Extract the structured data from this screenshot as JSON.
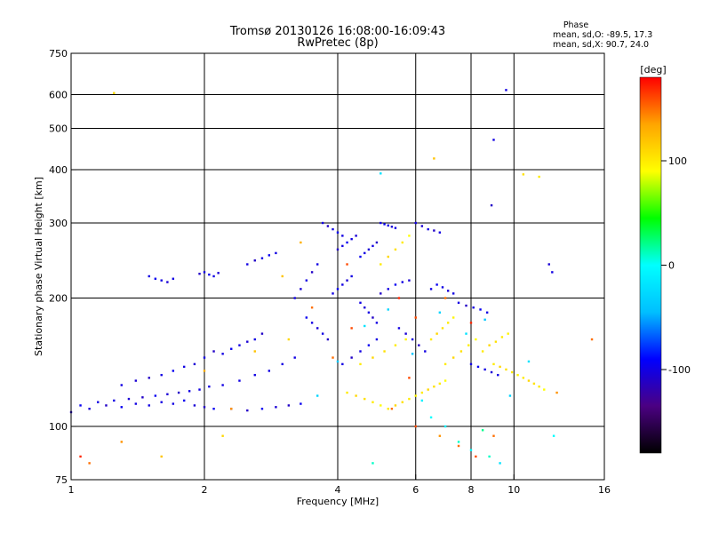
{
  "chart_data": {
    "type": "scatter",
    "title": "Tromsø 20130126 16:08:00-16:09:43",
    "subtitle": "RwPretec (8p)",
    "xlabel": "Frequency [MHz]",
    "ylabel": "Stationary phase Virtual Height [km]",
    "x_scale": "log2",
    "y_scale": "log",
    "xlim": [
      1,
      16
    ],
    "ylim": [
      75,
      750
    ],
    "x_ticks": [
      1,
      2,
      4,
      6,
      8,
      10,
      16
    ],
    "y_ticks": [
      75,
      100,
      200,
      300,
      400,
      500,
      600,
      750
    ],
    "grid": true,
    "phase_box": {
      "title": "Phase",
      "line_o": "mean, sd,O: -89.5, 17.3",
      "line_x": "mean, sd,X:  90.7, 24.0"
    },
    "colorbar": {
      "label": "[deg]",
      "range": [
        -180,
        180
      ],
      "ticks": [
        100,
        0,
        -100
      ],
      "colors": [
        "#000000",
        "#4b0082",
        "#0000ff",
        "#00bfff",
        "#00ffff",
        "#00ff00",
        "#ffff00",
        "#ffa500",
        "#ff0000"
      ]
    },
    "series": [
      {
        "points": [
          [
            1.0,
            108,
            -110
          ],
          [
            1.05,
            112,
            -95
          ],
          [
            1.1,
            110,
            -105
          ],
          [
            1.15,
            114,
            -100
          ],
          [
            1.2,
            112,
            -110
          ],
          [
            1.25,
            115,
            -100
          ],
          [
            1.3,
            111,
            -95
          ],
          [
            1.35,
            116,
            -105
          ],
          [
            1.4,
            113,
            -100
          ],
          [
            1.45,
            117,
            -110
          ],
          [
            1.5,
            112,
            -100
          ],
          [
            1.55,
            118,
            -95
          ],
          [
            1.6,
            114,
            -100
          ],
          [
            1.65,
            119,
            -105
          ],
          [
            1.7,
            113,
            -100
          ],
          [
            1.75,
            120,
            -110
          ],
          [
            1.8,
            115,
            -95
          ],
          [
            1.85,
            121,
            -100
          ],
          [
            1.9,
            112,
            -105
          ],
          [
            1.95,
            122,
            -100
          ],
          [
            2.0,
            111,
            -110
          ],
          [
            2.05,
            124,
            -100
          ],
          [
            2.1,
            110,
            -95
          ],
          [
            2.2,
            125,
            -100
          ],
          [
            2.3,
            110,
            -105
          ],
          [
            2.4,
            128,
            -100
          ],
          [
            2.5,
            109,
            -110
          ],
          [
            2.6,
            132,
            -100
          ],
          [
            2.7,
            110,
            -95
          ],
          [
            2.8,
            135,
            -100
          ],
          [
            2.9,
            111,
            -105
          ],
          [
            3.0,
            140,
            -100
          ],
          [
            3.1,
            112,
            -110
          ],
          [
            3.2,
            145,
            -100
          ],
          [
            3.3,
            113,
            -95
          ],
          [
            1.3,
            125,
            -100
          ],
          [
            1.4,
            128,
            -105
          ],
          [
            1.5,
            130,
            -110
          ],
          [
            1.6,
            132,
            -100
          ],
          [
            1.7,
            135,
            -95
          ],
          [
            1.8,
            138,
            -100
          ],
          [
            1.9,
            140,
            -105
          ],
          [
            2.0,
            145,
            -100
          ],
          [
            2.1,
            150,
            -110
          ],
          [
            2.2,
            148,
            -100
          ],
          [
            2.3,
            152,
            -95
          ],
          [
            2.4,
            155,
            -100
          ],
          [
            2.5,
            158,
            -105
          ],
          [
            2.6,
            160,
            -100
          ],
          [
            2.7,
            165,
            -110
          ],
          [
            1.5,
            225,
            -100
          ],
          [
            1.55,
            222,
            -95
          ],
          [
            1.6,
            220,
            -100
          ],
          [
            1.65,
            218,
            -105
          ],
          [
            1.7,
            222,
            -100
          ],
          [
            1.95,
            228,
            -110
          ],
          [
            2.0,
            230,
            -100
          ],
          [
            2.05,
            227,
            -95
          ],
          [
            2.1,
            225,
            -100
          ],
          [
            2.15,
            229,
            -105
          ],
          [
            2.5,
            240,
            -100
          ],
          [
            2.6,
            245,
            -110
          ],
          [
            2.7,
            248,
            -100
          ],
          [
            2.8,
            252,
            -95
          ],
          [
            2.9,
            255,
            -100
          ],
          [
            3.2,
            200,
            -100
          ],
          [
            3.3,
            210,
            -105
          ],
          [
            3.4,
            220,
            -100
          ],
          [
            3.5,
            230,
            -110
          ],
          [
            3.6,
            240,
            -100
          ],
          [
            3.4,
            180,
            -95
          ],
          [
            3.5,
            175,
            -100
          ],
          [
            3.6,
            170,
            -105
          ],
          [
            3.7,
            165,
            -100
          ],
          [
            3.8,
            160,
            -110
          ],
          [
            3.9,
            205,
            -100
          ],
          [
            4.0,
            210,
            -95
          ],
          [
            4.1,
            215,
            -100
          ],
          [
            4.2,
            220,
            -105
          ],
          [
            4.3,
            225,
            -100
          ],
          [
            4.0,
            260,
            -110
          ],
          [
            4.1,
            265,
            -100
          ],
          [
            4.2,
            270,
            -95
          ],
          [
            4.3,
            275,
            -100
          ],
          [
            4.4,
            280,
            -105
          ],
          [
            3.7,
            300,
            -100
          ],
          [
            3.8,
            295,
            -110
          ],
          [
            3.9,
            290,
            -100
          ],
          [
            4.0,
            285,
            -95
          ],
          [
            4.1,
            280,
            -100
          ],
          [
            4.5,
            195,
            -100
          ],
          [
            4.6,
            190,
            -105
          ],
          [
            4.7,
            185,
            -100
          ],
          [
            4.8,
            180,
            -110
          ],
          [
            4.9,
            175,
            -100
          ],
          [
            4.5,
            250,
            -95
          ],
          [
            4.6,
            255,
            -100
          ],
          [
            4.7,
            260,
            -105
          ],
          [
            4.8,
            265,
            -100
          ],
          [
            4.9,
            270,
            -110
          ],
          [
            5.0,
            300,
            -100
          ],
          [
            5.1,
            298,
            -95
          ],
          [
            5.2,
            296,
            -100
          ],
          [
            5.3,
            294,
            -105
          ],
          [
            5.4,
            292,
            -100
          ],
          [
            5.0,
            205,
            -110
          ],
          [
            5.2,
            210,
            -100
          ],
          [
            5.4,
            215,
            -95
          ],
          [
            5.6,
            218,
            -100
          ],
          [
            5.8,
            220,
            -105
          ],
          [
            4.1,
            140,
            -100
          ],
          [
            4.3,
            145,
            -110
          ],
          [
            4.5,
            150,
            -100
          ],
          [
            4.7,
            155,
            -95
          ],
          [
            4.9,
            160,
            -100
          ],
          [
            5.5,
            170,
            -100
          ],
          [
            5.7,
            165,
            -105
          ],
          [
            5.9,
            160,
            -100
          ],
          [
            6.1,
            155,
            -110
          ],
          [
            6.3,
            150,
            -100
          ],
          [
            6.5,
            210,
            -100
          ],
          [
            6.7,
            215,
            -95
          ],
          [
            6.9,
            212,
            -100
          ],
          [
            7.1,
            208,
            -105
          ],
          [
            7.3,
            205,
            -100
          ],
          [
            7.5,
            195,
            -100
          ],
          [
            7.8,
            192,
            -110
          ],
          [
            8.1,
            190,
            -100
          ],
          [
            8.4,
            188,
            -95
          ],
          [
            8.7,
            185,
            -100
          ],
          [
            6.0,
            300,
            -100
          ],
          [
            6.2,
            295,
            -105
          ],
          [
            6.4,
            290,
            -100
          ],
          [
            6.6,
            288,
            -110
          ],
          [
            6.8,
            285,
            -100
          ],
          [
            8.0,
            140,
            -100
          ],
          [
            8.3,
            138,
            -95
          ],
          [
            8.6,
            136,
            -100
          ],
          [
            8.9,
            134,
            -105
          ],
          [
            9.2,
            132,
            -100
          ],
          [
            9.6,
            615,
            -100
          ],
          [
            9.0,
            470,
            -100
          ],
          [
            12.0,
            240,
            -105
          ],
          [
            12.2,
            230,
            -100
          ],
          [
            8.9,
            330,
            -110
          ],
          [
            4.2,
            120,
            100
          ],
          [
            4.4,
            118,
            110
          ],
          [
            4.6,
            116,
            105
          ],
          [
            4.8,
            114,
            100
          ],
          [
            5.0,
            112,
            90
          ],
          [
            5.2,
            110,
            100
          ],
          [
            5.4,
            112,
            110
          ],
          [
            5.6,
            114,
            105
          ],
          [
            5.8,
            116,
            100
          ],
          [
            6.0,
            118,
            95
          ],
          [
            6.2,
            120,
            100
          ],
          [
            6.4,
            122,
            110
          ],
          [
            6.6,
            124,
            105
          ],
          [
            6.8,
            126,
            100
          ],
          [
            7.0,
            128,
            90
          ],
          [
            6.5,
            160,
            100
          ],
          [
            6.7,
            165,
            110
          ],
          [
            6.9,
            170,
            105
          ],
          [
            7.1,
            175,
            100
          ],
          [
            7.3,
            180,
            95
          ],
          [
            7.0,
            140,
            100
          ],
          [
            7.3,
            145,
            110
          ],
          [
            7.6,
            150,
            105
          ],
          [
            7.9,
            155,
            100
          ],
          [
            8.2,
            160,
            90
          ],
          [
            4.5,
            140,
            100
          ],
          [
            4.8,
            145,
            110
          ],
          [
            5.1,
            150,
            105
          ],
          [
            5.4,
            155,
            100
          ],
          [
            5.7,
            160,
            95
          ],
          [
            5.0,
            240,
            100
          ],
          [
            5.2,
            250,
            110
          ],
          [
            5.4,
            260,
            105
          ],
          [
            5.6,
            270,
            100
          ],
          [
            5.8,
            280,
            90
          ],
          [
            9.0,
            140,
            100
          ],
          [
            9.3,
            138,
            110
          ],
          [
            9.6,
            136,
            105
          ],
          [
            9.9,
            134,
            100
          ],
          [
            10.2,
            132,
            95
          ],
          [
            10.5,
            130,
            100
          ],
          [
            10.8,
            128,
            110
          ],
          [
            11.1,
            126,
            105
          ],
          [
            11.4,
            124,
            100
          ],
          [
            11.7,
            122,
            90
          ],
          [
            8.5,
            150,
            100
          ],
          [
            8.8,
            155,
            110
          ],
          [
            9.1,
            158,
            105
          ],
          [
            9.4,
            162,
            100
          ],
          [
            9.7,
            165,
            95
          ],
          [
            1.25,
            605,
            110
          ],
          [
            10.5,
            390,
            105
          ],
          [
            11.4,
            385,
            100
          ],
          [
            6.6,
            425,
            120
          ],
          [
            1.1,
            82,
            150
          ],
          [
            1.3,
            92,
            140
          ],
          [
            2.3,
            110,
            140
          ],
          [
            3.5,
            190,
            150
          ],
          [
            4.2,
            240,
            160
          ],
          [
            5.3,
            110,
            150
          ],
          [
            6.0,
            100,
            160
          ],
          [
            6.8,
            95,
            140
          ],
          [
            7.5,
            90,
            150
          ],
          [
            8.2,
            85,
            160
          ],
          [
            9.0,
            95,
            150
          ],
          [
            12.5,
            120,
            140
          ],
          [
            15.0,
            160,
            150
          ],
          [
            3.9,
            145,
            150
          ],
          [
            4.3,
            170,
            160
          ],
          [
            1.05,
            85,
            170
          ],
          [
            1.6,
            85,
            120
          ],
          [
            2.2,
            95,
            110
          ],
          [
            5.5,
            200,
            170
          ],
          [
            6.0,
            180,
            160
          ],
          [
            7.0,
            200,
            150
          ],
          [
            8.0,
            175,
            170
          ],
          [
            5.8,
            130,
            160
          ],
          [
            2.0,
            135,
            130
          ],
          [
            2.6,
            150,
            120
          ],
          [
            3.1,
            160,
            110
          ],
          [
            3.0,
            225,
            120
          ],
          [
            3.3,
            270,
            130
          ],
          [
            6.5,
            105,
            0
          ],
          [
            7.0,
            100,
            -10
          ],
          [
            7.5,
            92,
            10
          ],
          [
            8.0,
            88,
            0
          ],
          [
            8.5,
            98,
            20
          ],
          [
            9.3,
            82,
            -20
          ],
          [
            12.3,
            95,
            0
          ],
          [
            4.8,
            82,
            10
          ],
          [
            6.2,
            115,
            -10
          ],
          [
            5.0,
            392,
            -20
          ],
          [
            8.8,
            85,
            10
          ],
          [
            3.6,
            118,
            -30
          ],
          [
            4.0,
            142,
            -40
          ],
          [
            4.6,
            172,
            -20
          ],
          [
            5.2,
            188,
            -30
          ],
          [
            5.9,
            148,
            -40
          ],
          [
            6.8,
            185,
            -30
          ],
          [
            7.8,
            165,
            -20
          ],
          [
            8.6,
            178,
            -40
          ],
          [
            9.8,
            118,
            -30
          ],
          [
            10.8,
            142,
            -20
          ]
        ]
      }
    ]
  }
}
